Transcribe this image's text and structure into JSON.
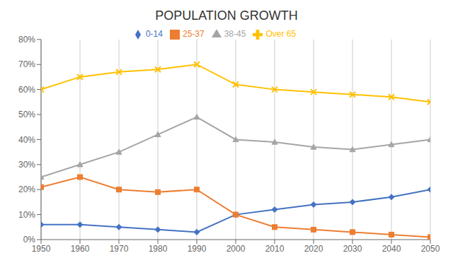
{
  "chart_data": {
    "type": "line",
    "title": "POPULATION GROWTH",
    "x": [
      1950,
      1960,
      1970,
      1980,
      1990,
      2000,
      2010,
      2020,
      2030,
      2040,
      2050
    ],
    "series": [
      {
        "name": "0-14",
        "color": "#4472C4",
        "marker": "diamond",
        "values": [
          6,
          6,
          5,
          4,
          3,
          10,
          12,
          14,
          15,
          17,
          20
        ]
      },
      {
        "name": "25-37",
        "color": "#ED7D31",
        "marker": "square",
        "values": [
          21,
          25,
          20,
          19,
          20,
          10,
          5,
          4,
          3,
          2,
          1
        ]
      },
      {
        "name": "38-45",
        "color": "#A5A5A5",
        "marker": "triangle",
        "values": [
          25,
          30,
          35,
          42,
          49,
          40,
          39,
          37,
          36,
          38,
          40
        ]
      },
      {
        "name": "Over 65",
        "color": "#FFC000",
        "marker": "x",
        "values": [
          60,
          65,
          67,
          68,
          70,
          62,
          60,
          59,
          58,
          57,
          55
        ]
      }
    ],
    "xlim": [
      1950,
      2050
    ],
    "xticks": [
      1950,
      1960,
      1970,
      1980,
      1990,
      2000,
      2010,
      2020,
      2030,
      2040,
      2050
    ],
    "ylim": [
      0,
      80
    ],
    "yticks": [
      {
        "value": 0,
        "label": "0%"
      },
      {
        "value": 10,
        "label": "10%"
      },
      {
        "value": 20,
        "label": "20%"
      },
      {
        "value": 30,
        "label": "30%"
      },
      {
        "value": 40,
        "label": "40%"
      },
      {
        "value": 50,
        "label": "50%"
      },
      {
        "value": 60,
        "label": "60%"
      },
      {
        "value": 70,
        "label": "70%"
      },
      {
        "value": 80,
        "label": "80%"
      }
    ],
    "grid": "x",
    "legend": "top"
  }
}
